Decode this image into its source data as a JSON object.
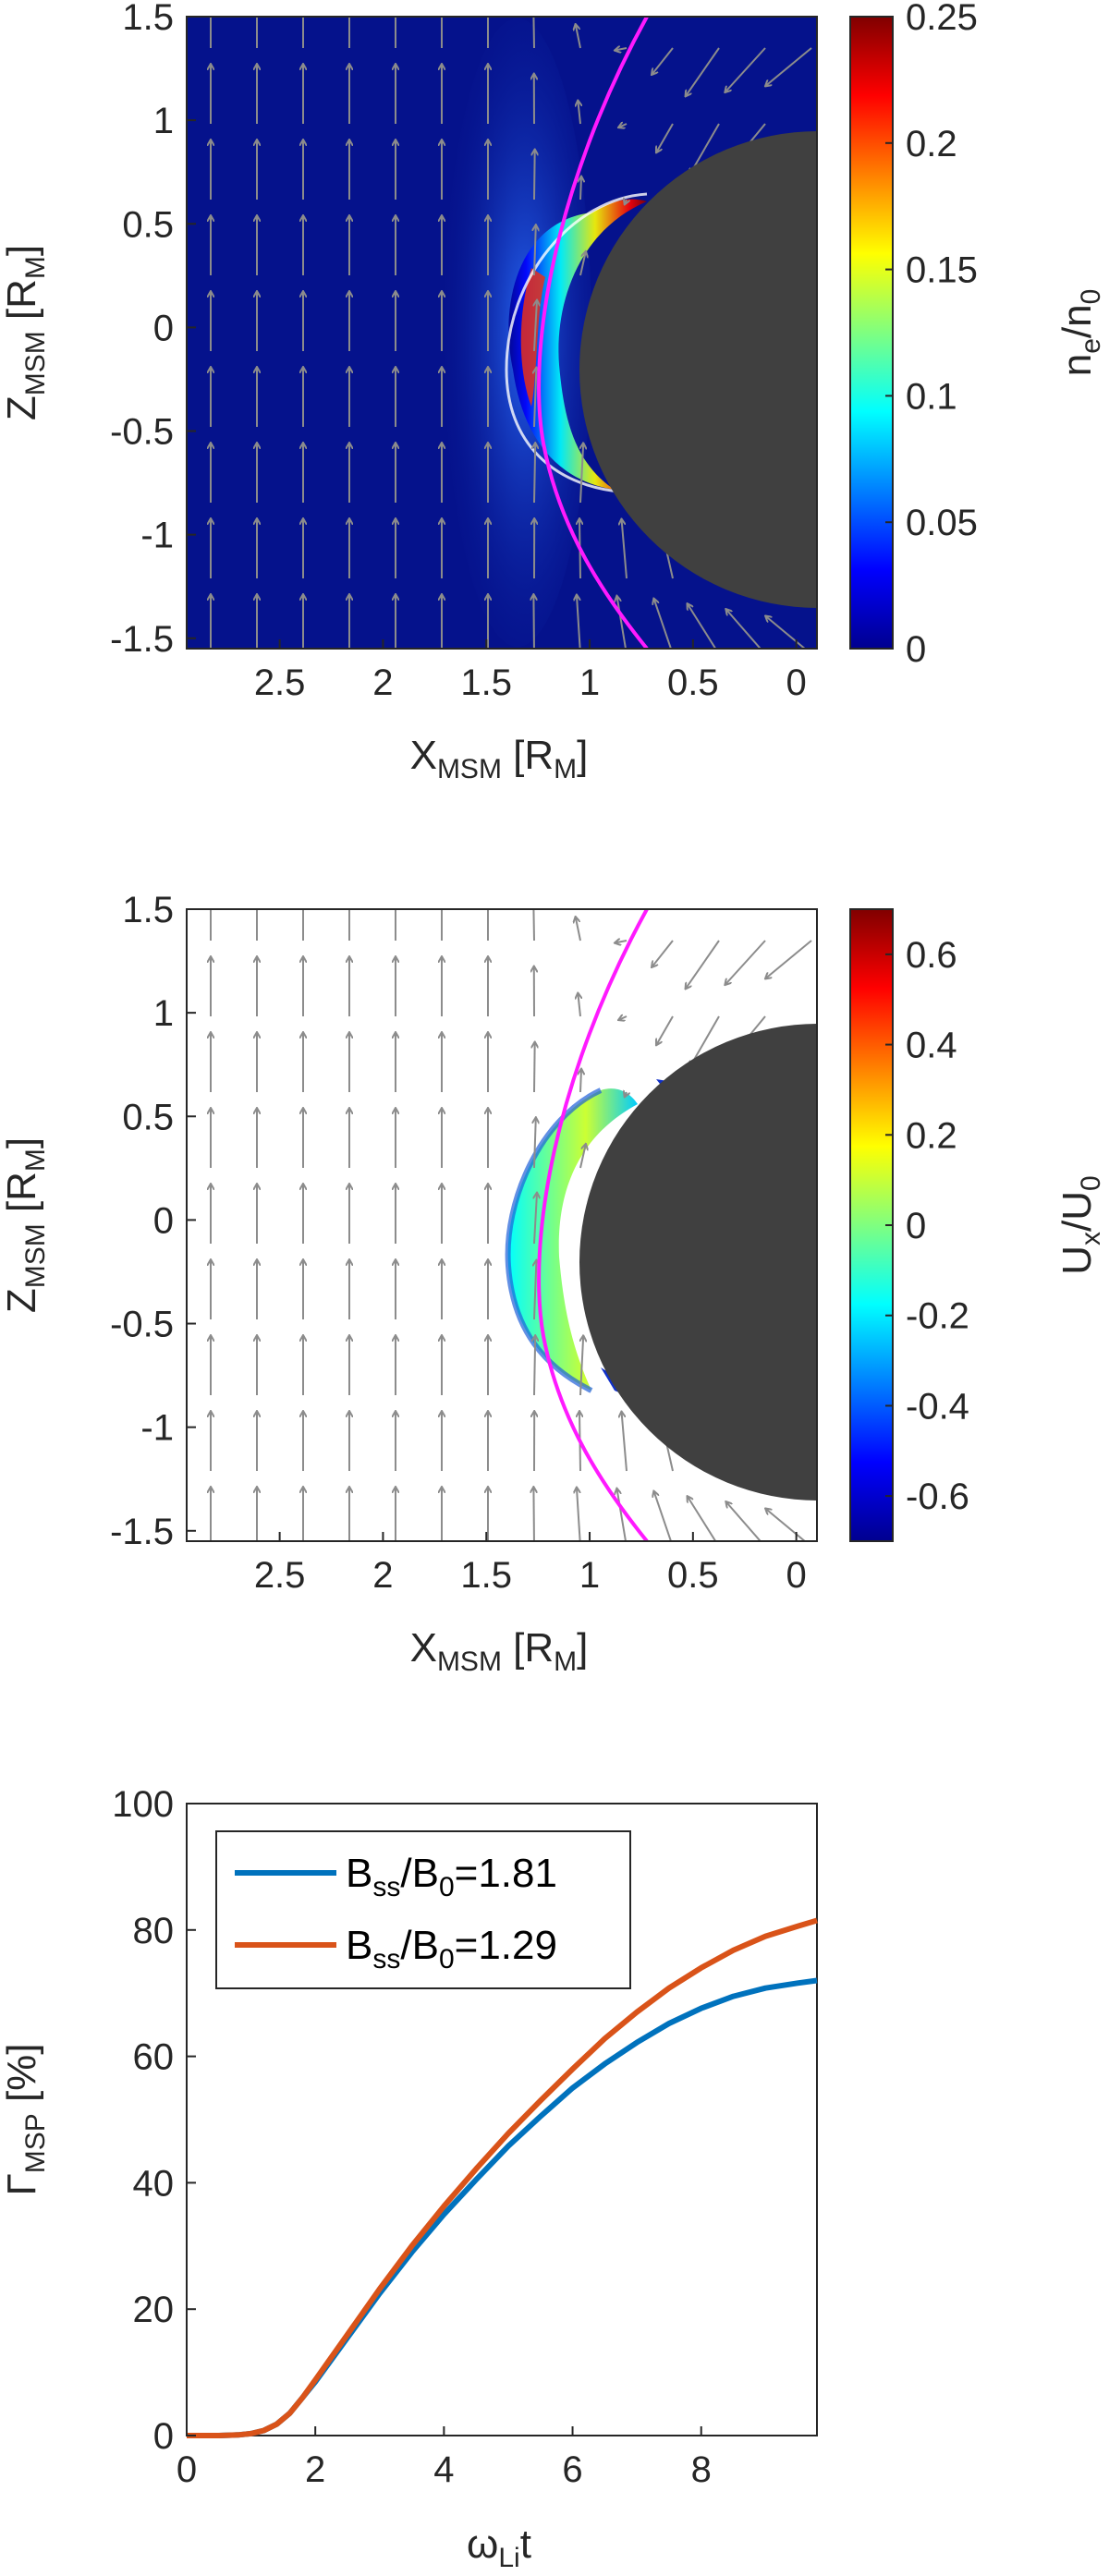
{
  "chart_data": [
    {
      "panel": "top",
      "type": "heatmap",
      "xlabel": {
        "main": "X",
        "sub": "MSM",
        "unit_open": " [R",
        "unit_sub": "M",
        "unit_close": "]"
      },
      "ylabel": {
        "main": "Z",
        "sub": "MSM",
        "unit_open": " [R",
        "unit_sub": "M",
        "unit_close": "]"
      },
      "colorbar_label": {
        "a": "n",
        "a_sub": "e",
        "slash": "/n",
        "b_sub": "0"
      },
      "x_ticks": [
        "2.5",
        "2",
        "1.5",
        "1",
        "0.5",
        "0"
      ],
      "x_tick_values": [
        2.5,
        2,
        1.5,
        1,
        0.5,
        0
      ],
      "y_ticks": [
        "1.5",
        "1",
        "0.5",
        "0",
        "-0.5",
        "-1",
        "-1.5"
      ],
      "y_tick_values": [
        1.5,
        1,
        0.5,
        0,
        -0.5,
        -1,
        -1.5
      ],
      "colorbar_ticks": [
        "0.25",
        "0.2",
        "0.15",
        "0.1",
        "0.05",
        "0"
      ],
      "colorbar_values": [
        0.25,
        0.2,
        0.15,
        0.1,
        0.05,
        0
      ],
      "xlim": [
        2.95,
        -0.1
      ],
      "ylim": [
        -1.55,
        1.5
      ],
      "clim": [
        0,
        0.25
      ],
      "background": "#05128c",
      "planet_color": "#404040",
      "boundary_color": "#ff1aff",
      "arrow_color": "#8c8c8c"
    },
    {
      "panel": "middle",
      "type": "heatmap",
      "xlabel": {
        "main": "X",
        "sub": "MSM",
        "unit_open": " [R",
        "unit_sub": "M",
        "unit_close": "]"
      },
      "ylabel": {
        "main": "Z",
        "sub": "MSM",
        "unit_open": " [R",
        "unit_sub": "M",
        "unit_close": "]"
      },
      "colorbar_label": {
        "a": "U",
        "a_sub": "x",
        "slash": "/U",
        "b_sub": "0"
      },
      "x_ticks": [
        "2.5",
        "2",
        "1.5",
        "1",
        "0.5",
        "0"
      ],
      "x_tick_values": [
        2.5,
        2,
        1.5,
        1,
        0.5,
        0
      ],
      "y_ticks": [
        "1.5",
        "1",
        "0.5",
        "0",
        "-0.5",
        "-1",
        "-1.5"
      ],
      "y_tick_values": [
        1.5,
        1,
        0.5,
        0,
        -0.5,
        -1,
        -1.5
      ],
      "colorbar_ticks": [
        "0.6",
        "0.4",
        "0.2",
        "0",
        "-0.2",
        "-0.4",
        "-0.6"
      ],
      "colorbar_values": [
        0.6,
        0.4,
        0.2,
        0,
        -0.2,
        -0.4,
        -0.6
      ],
      "xlim": [
        2.95,
        -0.1
      ],
      "ylim": [
        -1.55,
        1.5
      ],
      "clim": [
        -0.7,
        0.7
      ],
      "background": "#ffffff",
      "planet_color": "#404040",
      "boundary_color": "#ff1aff",
      "arrow_color": "#8c8c8c"
    },
    {
      "panel": "bottom",
      "type": "line",
      "xlabel": {
        "main": "ω",
        "sub": "Li",
        "tail": "t"
      },
      "ylabel": {
        "main": "Γ",
        "sub": "MSP",
        "tail": " [%]"
      },
      "xlim": [
        0,
        9.8
      ],
      "ylim": [
        0,
        100
      ],
      "x_ticks": [
        "0",
        "2",
        "4",
        "6",
        "8"
      ],
      "x_tick_values": [
        0,
        2,
        4,
        6,
        8
      ],
      "y_ticks": [
        "0",
        "20",
        "40",
        "60",
        "80",
        "100"
      ],
      "y_tick_values": [
        0,
        20,
        40,
        60,
        80,
        100
      ],
      "legend_position": "top-left",
      "series": [
        {
          "name": "Bss/B0=1.81",
          "label_parts": {
            "a": "B",
            "a_sub": "ss",
            "b": "/B",
            "b_sub": "0",
            "tail": "=1.81"
          },
          "color": "#0072bd",
          "x": [
            0,
            0.5,
            0.8,
            1.0,
            1.2,
            1.4,
            1.6,
            1.8,
            2.0,
            2.5,
            3.0,
            3.5,
            4.0,
            4.5,
            5.0,
            5.5,
            6.0,
            6.5,
            7.0,
            7.5,
            8.0,
            8.5,
            9.0,
            9.5,
            9.8
          ],
          "y": [
            0,
            0,
            0.1,
            0.3,
            0.8,
            1.8,
            3.5,
            6.0,
            8.5,
            15.5,
            22.5,
            29.0,
            35.0,
            40.5,
            45.8,
            50.5,
            55.0,
            58.8,
            62.2,
            65.2,
            67.6,
            69.5,
            70.8,
            71.6,
            72.0
          ]
        },
        {
          "name": "Bss/B0=1.29",
          "label_parts": {
            "a": "B",
            "a_sub": "ss",
            "b": "/B",
            "b_sub": "0",
            "tail": "=1.29"
          },
          "color": "#d95319",
          "x": [
            0,
            0.5,
            0.8,
            1.0,
            1.2,
            1.4,
            1.6,
            1.8,
            2.0,
            2.5,
            3.0,
            3.5,
            4.0,
            4.5,
            5.0,
            5.5,
            6.0,
            6.5,
            7.0,
            7.5,
            8.0,
            8.5,
            9.0,
            9.5,
            9.8
          ],
          "y": [
            0,
            0,
            0.1,
            0.3,
            0.8,
            1.8,
            3.5,
            6.0,
            8.8,
            16.0,
            23.2,
            30.0,
            36.3,
            42.2,
            47.8,
            53.0,
            58.0,
            62.8,
            67.0,
            70.8,
            74.0,
            76.8,
            79.0,
            80.6,
            81.5
          ]
        }
      ]
    }
  ]
}
